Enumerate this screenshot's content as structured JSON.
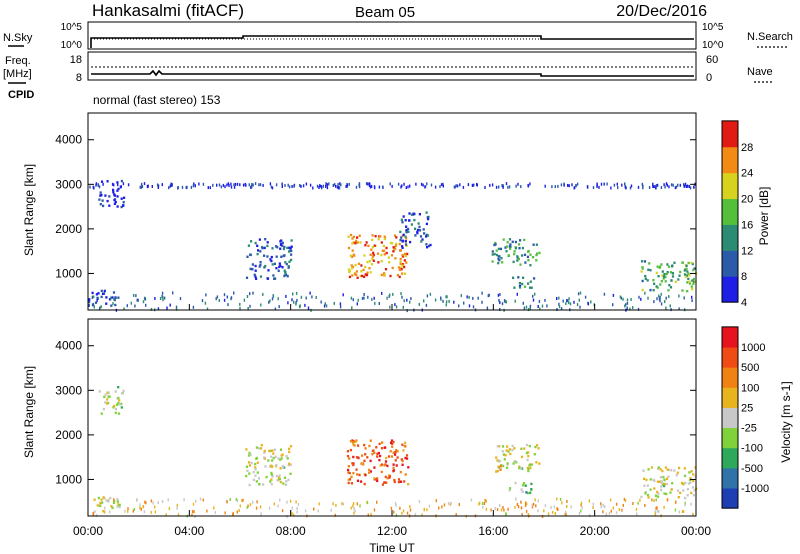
{
  "header": {
    "station": "Hankasalmi (fitACF)",
    "beam": "Beam 05",
    "date": "20/Dec/2016"
  },
  "status_panels": {
    "nsky": {
      "label": "N.Sky",
      "ticks": [
        "10^5",
        "10^0"
      ]
    },
    "nsearch": {
      "label": "N.Search",
      "ticks": [
        "10^5",
        "10^0"
      ]
    },
    "freq": {
      "label": "Freq.",
      "unit": "[MHz]",
      "ticks": [
        "18",
        "8"
      ]
    },
    "nave": {
      "label": "Nave",
      "ticks": [
        "60",
        "0"
      ]
    },
    "cpid": {
      "label": "CPID",
      "program": "normal (fast stereo) 153"
    }
  },
  "chart_data": [
    {
      "type": "heatmap",
      "name": "power",
      "ylabel": "Slant Range [km]",
      "ylim": [
        180,
        4600
      ],
      "yticks": [
        "4000",
        "3000",
        "2000",
        "1000"
      ],
      "xlim": [
        0,
        24
      ],
      "colorbar": {
        "label": "Power [dB]",
        "ticks": [
          "28",
          "24",
          "20",
          "16",
          "12",
          "8",
          "4"
        ],
        "colors": [
          "#1e1ee6",
          "#2a5aa8",
          "#2c8c73",
          "#55bf3c",
          "#d7d21e",
          "#f28a14",
          "#e11b14"
        ]
      },
      "regions": [
        {
          "t": [
            0.0,
            1.3
          ],
          "range": [
            300,
            650
          ],
          "level": 0.15
        },
        {
          "t": [
            0.4,
            1.4
          ],
          "range": [
            2500,
            3100
          ],
          "level": 0.12
        },
        {
          "t": [
            6.2,
            8.0
          ],
          "range": [
            900,
            1800
          ],
          "level": 0.2
        },
        {
          "t": [
            10.2,
            12.6
          ],
          "range": [
            900,
            1900
          ],
          "level": 0.75
        },
        {
          "t": [
            12.2,
            13.5
          ],
          "range": [
            1600,
            2400
          ],
          "level": 0.2
        },
        {
          "t": [
            15.9,
            17.8
          ],
          "range": [
            1200,
            1800
          ],
          "level": 0.35
        },
        {
          "t": [
            16.6,
            17.6
          ],
          "range": [
            700,
            950
          ],
          "level": 0.3
        },
        {
          "t": [
            21.8,
            24.0
          ],
          "range": [
            600,
            1300
          ],
          "level": 0.45
        },
        {
          "t": [
            0.0,
            24.0
          ],
          "range": [
            200,
            600
          ],
          "level": 0.25
        },
        {
          "t": [
            0.0,
            24.0
          ],
          "range": [
            2950,
            3050
          ],
          "level": 0.1
        }
      ]
    },
    {
      "type": "heatmap",
      "name": "velocity",
      "ylabel": "Slant Range [km]",
      "ylim": [
        180,
        4600
      ],
      "yticks": [
        "4000",
        "3000",
        "2000",
        "1000"
      ],
      "xlim": [
        0,
        24
      ],
      "xticks": [
        "00:00",
        "04:00",
        "08:00",
        "12:00",
        "16:00",
        "20:00",
        "00:00"
      ],
      "xlabel": "Time UT",
      "colorbar": {
        "label": "Velocity [m s-1]",
        "ticks": [
          "1000",
          "500",
          "100",
          "25",
          "-25",
          "-100",
          "-500",
          "-1000"
        ],
        "colors": [
          "#1e3fb4",
          "#2f73a8",
          "#2ea85a",
          "#7fd23a",
          "#c8c8c8",
          "#e8b41e",
          "#f08214",
          "#f04b14",
          "#e6141e"
        ]
      },
      "regions": [
        {
          "t": [
            0.0,
            1.3
          ],
          "range": [
            300,
            650
          ],
          "level": 0.5
        },
        {
          "t": [
            0.4,
            1.4
          ],
          "range": [
            2500,
            3100
          ],
          "level": 0.5
        },
        {
          "t": [
            6.2,
            8.0
          ],
          "range": [
            900,
            1800
          ],
          "level": 0.5
        },
        {
          "t": [
            10.2,
            12.6
          ],
          "range": [
            900,
            1900
          ],
          "level": 0.8
        },
        {
          "t": [
            15.9,
            17.8
          ],
          "range": [
            1200,
            1800
          ],
          "level": 0.5
        },
        {
          "t": [
            16.6,
            17.6
          ],
          "range": [
            700,
            950
          ],
          "level": 0.35
        },
        {
          "t": [
            21.8,
            24.0
          ],
          "range": [
            600,
            1300
          ],
          "level": 0.5
        },
        {
          "t": [
            0.0,
            24.0
          ],
          "range": [
            200,
            600
          ],
          "level": 0.6
        }
      ]
    }
  ]
}
